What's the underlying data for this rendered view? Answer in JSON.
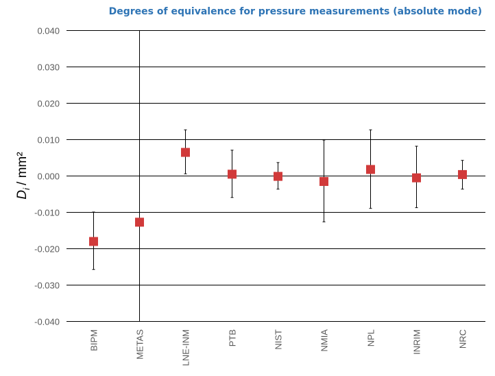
{
  "colors": {
    "title": "#2e74b5",
    "marker": "#d13a3a",
    "gridline": "#000000",
    "axis_text": "#595959"
  },
  "chart_data": {
    "type": "scatter",
    "title": "Degrees of equivalence for pressure measurements (absolute mode)",
    "ylabel_symbol": "D",
    "ylabel_subscript": "i",
    "ylabel_unit": "/ mm²",
    "ylim": [
      -0.04,
      0.04
    ],
    "yticks": [
      "0.040",
      "0.030",
      "0.020",
      "0.010",
      "0.000",
      "-0.010",
      "-0.020",
      "-0.030",
      "-0.040"
    ],
    "ytick_values": [
      0.04,
      0.03,
      0.02,
      0.01,
      0.0,
      -0.01,
      -0.02,
      -0.03,
      -0.04
    ],
    "grid": "horizontal",
    "legend": "none",
    "categories": [
      "BIPM",
      "METAS",
      "LNE-INM",
      "PTB",
      "NIST",
      "NMIA",
      "NPL",
      "INRIM",
      "NRC"
    ],
    "values": [
      -0.0181,
      -0.0128,
      0.0064,
      0.0004,
      -0.0002,
      -0.0016,
      0.0017,
      -0.0006,
      0.0003
    ],
    "err_low": [
      -0.0258,
      -0.04,
      0.0005,
      -0.006,
      -0.0037,
      -0.0127,
      -0.009,
      -0.0088,
      -0.0037
    ],
    "err_high": [
      -0.01,
      0.04,
      0.0126,
      0.007,
      0.0036,
      0.0098,
      0.0126,
      0.0081,
      0.0042
    ]
  }
}
